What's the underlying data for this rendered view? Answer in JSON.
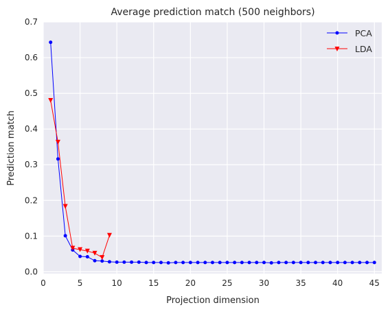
{
  "chart_data": {
    "type": "line",
    "title": "Average prediction match (500 neighbors)",
    "xlabel": "Projection dimension",
    "ylabel": "Prediction match",
    "xlim": [
      0,
      46
    ],
    "ylim": [
      -0.005,
      0.7
    ],
    "xticks": [
      0,
      5,
      10,
      15,
      20,
      25,
      30,
      35,
      40,
      45
    ],
    "xtick_labels": [
      "0",
      "5",
      "10",
      "15",
      "20",
      "25",
      "30",
      "35",
      "40",
      "45"
    ],
    "yticks": [
      0.0,
      0.1,
      0.2,
      0.3,
      0.4,
      0.5,
      0.6,
      0.7
    ],
    "ytick_labels": [
      "0.0",
      "0.1",
      "0.2",
      "0.3",
      "0.4",
      "0.5",
      "0.6",
      "0.7"
    ],
    "grid": true,
    "legend_position": "top-right",
    "series": [
      {
        "name": "PCA",
        "color": "#0000ff",
        "marker": "circle",
        "x": [
          1,
          2,
          3,
          4,
          5,
          6,
          7,
          8,
          9,
          10,
          11,
          12,
          13,
          14,
          15,
          16,
          17,
          18,
          19,
          20,
          21,
          22,
          23,
          24,
          25,
          26,
          27,
          28,
          29,
          30,
          31,
          32,
          33,
          34,
          35,
          36,
          37,
          38,
          39,
          40,
          41,
          42,
          43,
          44,
          45
        ],
        "values": [
          0.643,
          0.316,
          0.101,
          0.061,
          0.043,
          0.042,
          0.031,
          0.03,
          0.028,
          0.027,
          0.027,
          0.027,
          0.027,
          0.026,
          0.026,
          0.026,
          0.025,
          0.026,
          0.026,
          0.026,
          0.026,
          0.026,
          0.026,
          0.026,
          0.026,
          0.026,
          0.026,
          0.026,
          0.026,
          0.026,
          0.025,
          0.026,
          0.026,
          0.026,
          0.026,
          0.026,
          0.026,
          0.026,
          0.026,
          0.026,
          0.026,
          0.026,
          0.026,
          0.026,
          0.026
        ]
      },
      {
        "name": "LDA",
        "color": "#ff0000",
        "marker": "triangle-down",
        "x": [
          1,
          2,
          3,
          4,
          5,
          6,
          7,
          8,
          9
        ],
        "values": [
          0.48,
          0.363,
          0.183,
          0.066,
          0.062,
          0.058,
          0.052,
          0.04,
          0.102
        ]
      }
    ]
  }
}
